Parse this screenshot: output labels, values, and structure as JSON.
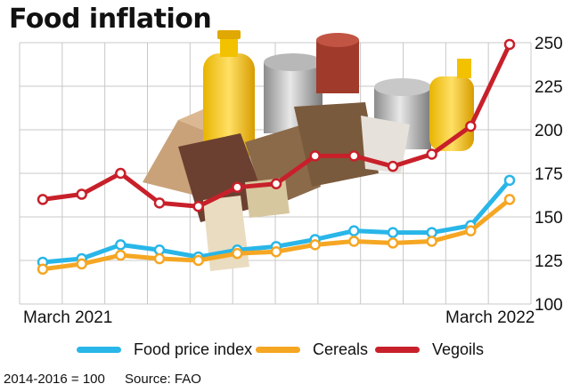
{
  "title": "Food inflation",
  "chart_data": {
    "type": "line",
    "x_start_label": "March 2021",
    "x_end_label": "March 2022",
    "ylim": [
      100,
      250
    ],
    "yticks": [
      100,
      125,
      150,
      175,
      200,
      225,
      250
    ],
    "grid": true,
    "legend_position": "bottom",
    "series": [
      {
        "name": "Food price index",
        "color": "#29b6e8",
        "values": [
          124,
          126,
          134,
          131,
          127,
          131,
          133,
          137,
          142,
          141,
          141,
          145,
          171
        ]
      },
      {
        "name": "Cereals",
        "color": "#f5a623",
        "values": [
          120,
          123,
          128,
          126,
          125,
          129,
          130,
          134,
          136,
          135,
          136,
          142,
          160
        ]
      },
      {
        "name": "Vegoils",
        "color": "#c8202a",
        "values": [
          160,
          163,
          175,
          158,
          156,
          167,
          169,
          185,
          185,
          179,
          186,
          202,
          249
        ]
      }
    ]
  },
  "footer": {
    "base": "2014-2016 = 100",
    "source": "Source: FAO"
  }
}
